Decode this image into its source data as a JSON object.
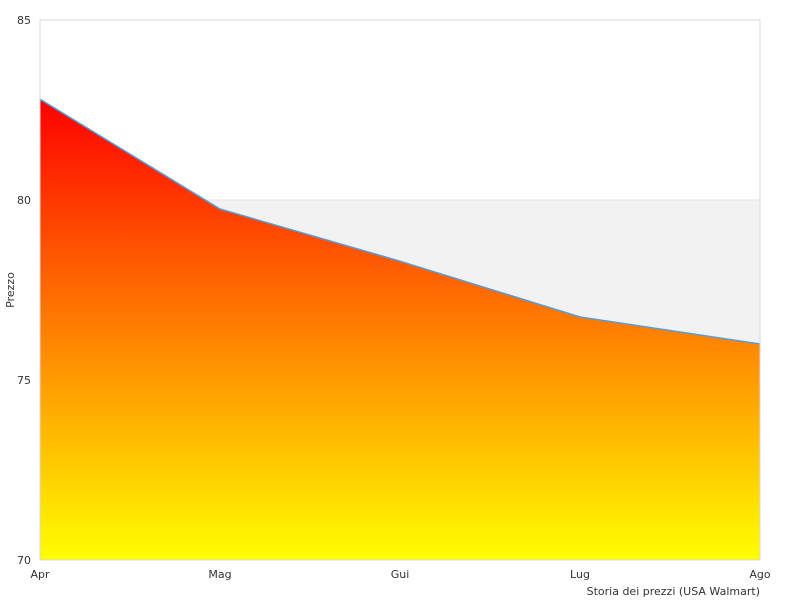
{
  "chart_data": {
    "type": "area",
    "title": "",
    "xlabel": "Storia dei prezzi (USA Walmart)",
    "ylabel": "Prezzo",
    "categories": [
      "Apr",
      "Mag",
      "Gui",
      "Lug",
      "Ago"
    ],
    "series": [
      {
        "values": [
          82.8,
          79.75,
          78.3,
          76.75,
          76.0
        ]
      }
    ],
    "ylim": [
      70,
      85
    ],
    "yticks": [
      70,
      75,
      80,
      85
    ],
    "grid": true,
    "legend": "none",
    "colors": {
      "fill_top": "#ff0000",
      "fill_bottom": "#ffff00",
      "line": "#5b9bd5",
      "band": "#f2f2f2",
      "border": "#d9d9d9"
    }
  }
}
